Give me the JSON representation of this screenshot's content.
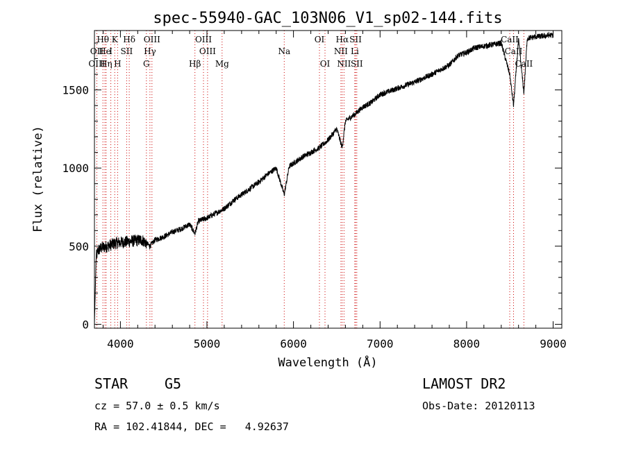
{
  "chart_data": {
    "type": "line",
    "title": "spec-55940-GAC_103N06_V1_sp02-144.fits",
    "xlabel": "Wavelength (Å)",
    "ylabel": "Flux (relative)",
    "xlim": [
      3700,
      9100
    ],
    "ylim": [
      -25,
      1880
    ],
    "xticks": [
      4000,
      5000,
      6000,
      7000,
      8000,
      9000
    ],
    "yticks": [
      0,
      500,
      1000,
      1500
    ],
    "x_minor_step": 200,
    "y_minor_step": 100,
    "grid": false,
    "series": [
      {
        "color": "#000000",
        "noise": 18,
        "x": [
          3700,
          3720,
          3740,
          3780,
          3850,
          3950,
          4100,
          4250,
          4300,
          4340,
          4400,
          4500,
          4600,
          4700,
          4800,
          4861,
          4900,
          5000,
          5100,
          5200,
          5300,
          5400,
          5500,
          5600,
          5700,
          5800,
          5893,
          5950,
          6000,
          6100,
          6200,
          6300,
          6400,
          6500,
          6563,
          6600,
          6700,
          6800,
          6900,
          7000,
          7200,
          7400,
          7600,
          7700,
          7800,
          7900,
          8000,
          8100,
          8200,
          8300,
          8400,
          8498,
          8542,
          8600,
          8662,
          8700,
          8800,
          8900,
          8950,
          9000
        ],
        "y": [
          0,
          430,
          470,
          490,
          500,
          520,
          530,
          540,
          520,
          500,
          540,
          560,
          590,
          610,
          640,
          580,
          660,
          680,
          710,
          740,
          790,
          830,
          870,
          910,
          960,
          1000,
          830,
          1010,
          1030,
          1070,
          1100,
          1130,
          1180,
          1250,
          1130,
          1300,
          1340,
          1390,
          1420,
          1470,
          1510,
          1550,
          1600,
          1630,
          1660,
          1720,
          1740,
          1770,
          1780,
          1790,
          1800,
          1600,
          1400,
          1820,
          1480,
          1830,
          1840,
          1845,
          1850,
          1850
        ]
      }
    ],
    "line_markers": {
      "top": [
        {
          "label": "Hθ",
          "x": 3798
        },
        {
          "label": "K",
          "x": 3934
        },
        {
          "label": "Hδ",
          "x": 4102
        },
        {
          "label": "OIII",
          "x": 4364
        },
        {
          "label": "OIII",
          "x": 4960
        },
        {
          "label": "OI",
          "x": 6300
        },
        {
          "label": "Hα",
          "x": 6563
        },
        {
          "label": "SII",
          "x": 6717
        },
        {
          "label": "CaII",
          "x": 8498
        }
      ],
      "middle": [
        {
          "label": "OII",
          "x": 3727
        },
        {
          "label": "He",
          "x": 3820
        },
        {
          "label": "I",
          "x": 3889
        },
        {
          "label": "SII",
          "x": 4072
        },
        {
          "label": "Hγ",
          "x": 4341
        },
        {
          "label": "OIII",
          "x": 5007
        },
        {
          "label": "Na",
          "x": 5893
        },
        {
          "label": "NII",
          "x": 6548
        },
        {
          "label": "Li",
          "x": 6708
        },
        {
          "label": "CaII",
          "x": 8542
        }
      ],
      "bottom": [
        {
          "label": "OIII",
          "x": 3727
        },
        {
          "label": "Hη",
          "x": 3835
        },
        {
          "label": "H",
          "x": 3968
        },
        {
          "label": "G",
          "x": 4300
        },
        {
          "label": "Hβ",
          "x": 4861
        },
        {
          "label": "Mg",
          "x": 5175
        },
        {
          "label": "OI",
          "x": 6364
        },
        {
          "label": "NII",
          "x": 6584
        },
        {
          "label": "SII",
          "x": 6731
        },
        {
          "label": "CaII",
          "x": 8662
        }
      ],
      "dotted_red": [
        3727,
        3798,
        3820,
        3835,
        3889,
        3934,
        3968,
        4072,
        4102,
        4300,
        4341,
        4364,
        4861,
        4960,
        5007,
        5175,
        5893,
        6300,
        6364,
        6548,
        6563,
        6584,
        6708,
        6717,
        6731,
        8498,
        8542,
        8662
      ]
    }
  },
  "footer": {
    "object_type": "STAR",
    "subclass": "G5",
    "survey": "LAMOST DR2",
    "redshift": "cz = 57.0 ± 0.5 km/s",
    "obs_date": "Obs-Date: 20120113",
    "coords": "RA = 102.41844, DEC =   4.92637"
  }
}
